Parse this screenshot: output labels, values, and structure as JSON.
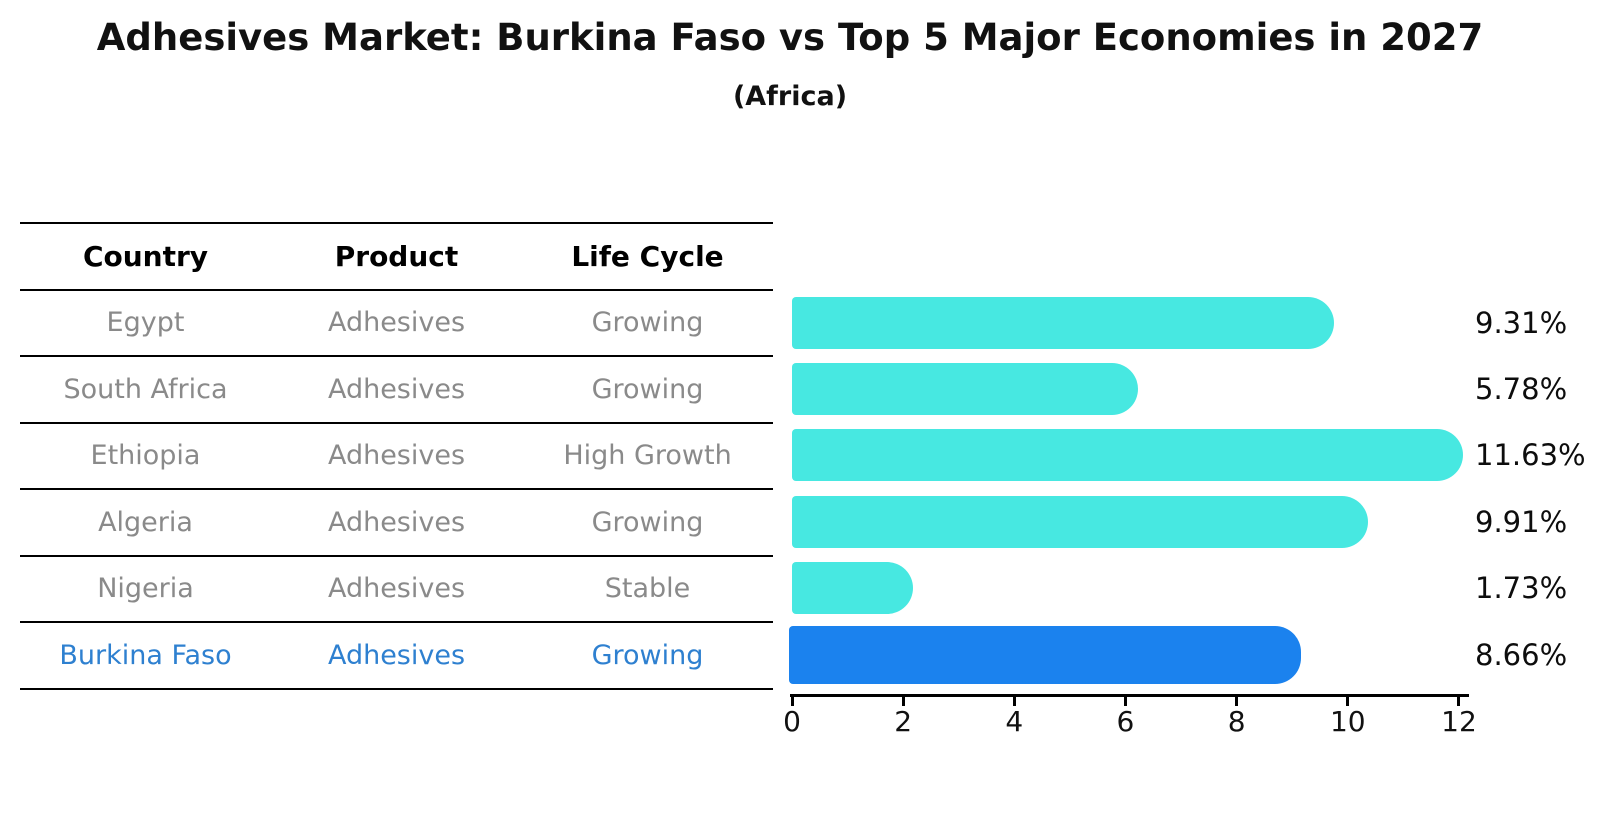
{
  "title": "Adhesives Market: Burkina Faso vs Top 5 Major Economies in 2027",
  "subtitle": "(Africa)",
  "table": {
    "headers": [
      "Country",
      "Product",
      "Life Cycle"
    ],
    "rows": [
      {
        "country": "Egypt",
        "product": "Adhesives",
        "life_cycle": "Growing",
        "highlight": false
      },
      {
        "country": "South Africa",
        "product": "Adhesives",
        "life_cycle": "Growing",
        "highlight": false
      },
      {
        "country": "Ethiopia",
        "product": "Adhesives",
        "life_cycle": "High Growth",
        "highlight": false
      },
      {
        "country": "Algeria",
        "product": "Adhesives",
        "life_cycle": "Growing",
        "highlight": false
      },
      {
        "country": "Nigeria",
        "product": "Adhesives",
        "life_cycle": "Stable",
        "highlight": false
      },
      {
        "country": "Burkina Faso",
        "product": "Adhesives",
        "life_cycle": "Growing",
        "highlight": true
      }
    ]
  },
  "chart_data": {
    "type": "bar",
    "orientation": "horizontal",
    "categories": [
      "Egypt",
      "South Africa",
      "Ethiopia",
      "Algeria",
      "Nigeria",
      "Burkina Faso"
    ],
    "values": [
      9.31,
      5.78,
      11.63,
      9.91,
      1.73,
      8.66
    ],
    "value_labels": [
      "9.31%",
      "5.78%",
      "11.63%",
      "9.91%",
      "1.73%",
      "8.66%"
    ],
    "xlim": [
      0,
      12
    ],
    "xticks": [
      "0",
      "2",
      "4",
      "6",
      "8",
      "10",
      "12"
    ],
    "grid": false,
    "legend": "none",
    "highlight_index": 5,
    "bar_color": "#47e8e1",
    "highlight_bar_color": "#1b82ee",
    "highlight_border_color": "#1b82ee",
    "highlight_text_color": "#2e80d0",
    "row_text_color": "#8a8a8a"
  }
}
